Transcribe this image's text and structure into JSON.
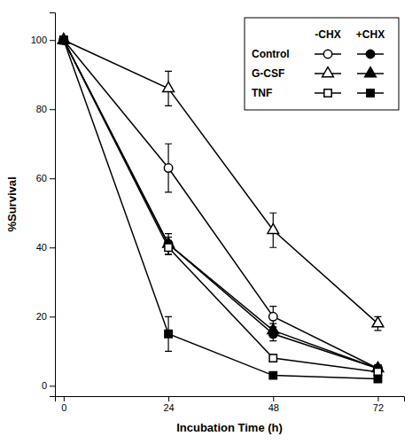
{
  "chart_data": {
    "type": "line",
    "xlabel": "Incubation Time (h)",
    "ylabel": "%Survival",
    "x": [
      0,
      24,
      48,
      72
    ],
    "series": [
      {
        "values": [
          100,
          63,
          20,
          5
        ],
        "errors": [
          0,
          7,
          3,
          1
        ],
        "marker": "circle-open",
        "color": "black"
      },
      {
        "values": [
          100,
          41,
          15,
          5
        ],
        "errors": [
          0,
          3,
          2,
          1
        ],
        "marker": "circle",
        "color": "black"
      },
      {
        "values": [
          100,
          86,
          45,
          18
        ],
        "errors": [
          0,
          5,
          5,
          2
        ],
        "marker": "triangle-open",
        "color": "black"
      },
      {
        "values": [
          100,
          41,
          16,
          5
        ],
        "errors": [
          0,
          2,
          2,
          1
        ],
        "marker": "triangle",
        "color": "black"
      },
      {
        "values": [
          100,
          40,
          8,
          4
        ],
        "errors": [
          0,
          2,
          1,
          1
        ],
        "marker": "square-open",
        "color": "black"
      },
      {
        "values": [
          100,
          15,
          3,
          2
        ],
        "errors": [
          0,
          5,
          1,
          1
        ],
        "marker": "square",
        "color": "black"
      }
    ],
    "legend_columns": [
      "-CHX",
      "+CHX"
    ],
    "legend_rows": [
      "Control",
      "G-CSF",
      "TNF"
    ],
    "xlim": [
      -2,
      78
    ],
    "ylim": [
      -3,
      108
    ],
    "xticks": [
      0,
      24,
      48,
      72
    ],
    "yticks": [
      0,
      20,
      40,
      60,
      80,
      100
    ],
    "grid": false,
    "legend": "upper right"
  }
}
